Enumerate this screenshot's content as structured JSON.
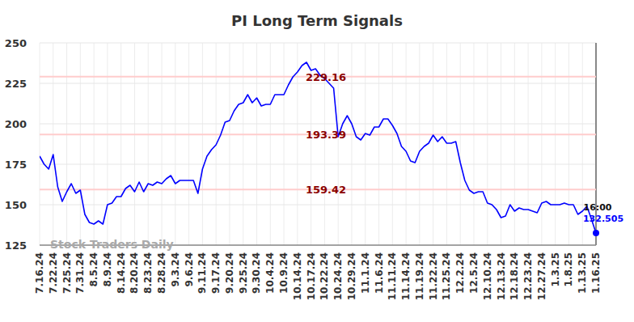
{
  "chart_data": {
    "type": "line",
    "title": "PI Long Term Signals",
    "categories": [
      "7.16.24",
      null,
      null,
      "7.22.24",
      null,
      null,
      "7.25.24",
      null,
      null,
      "7.31.24",
      null,
      null,
      "8.5.24",
      null,
      null,
      "8.9.24",
      null,
      null,
      "8.14.24",
      null,
      null,
      "8.20.24",
      null,
      null,
      "8.23.24",
      null,
      null,
      "8.28.24",
      null,
      null,
      "9.3.24",
      null,
      null,
      "9.6.24",
      null,
      null,
      "9.11.24",
      null,
      null,
      "9.17.24",
      null,
      null,
      "9.20.24",
      null,
      null,
      "9.25.24",
      null,
      null,
      "9.30.24",
      null,
      null,
      "10.4.24",
      null,
      null,
      "10.9.24",
      null,
      null,
      "10.14.24",
      null,
      null,
      "10.17.24",
      null,
      null,
      "10.22.24",
      null,
      null,
      "10.24.24",
      null,
      null,
      "10.29.24",
      null,
      null,
      "11.1.24",
      null,
      null,
      "11.6.24",
      null,
      null,
      "11.11.24",
      null,
      null,
      "11.14.24",
      null,
      null,
      "11.19.24",
      null,
      null,
      "11.22.24",
      null,
      null,
      "11.25.24",
      null,
      null,
      "12.2.24",
      null,
      null,
      "12.5.24",
      null,
      null,
      "12.10.24",
      null,
      null,
      "12.13.24",
      null,
      null,
      "12.18.24",
      null,
      null,
      "12.23.24",
      null,
      null,
      "12.27.24",
      null,
      null,
      "1.3.25",
      null,
      null,
      "1.8.25",
      null,
      null,
      "1.13.25",
      null,
      null,
      "1.16.25"
    ],
    "values": [
      180,
      175,
      172,
      181,
      161,
      152,
      158,
      163,
      157,
      159,
      144,
      139,
      138,
      140,
      138,
      150,
      151,
      155,
      155,
      160,
      162,
      158,
      164,
      158,
      163,
      162,
      164,
      163,
      166,
      168,
      163,
      165,
      165,
      165,
      165,
      157,
      172,
      180,
      184,
      187,
      193,
      201,
      202,
      208,
      212,
      213,
      218,
      213,
      216,
      211,
      212,
      212,
      218,
      218,
      218,
      224,
      229,
      232,
      236,
      238,
      233,
      234,
      230,
      228,
      225,
      222,
      192,
      200,
      205,
      200,
      192,
      190,
      194,
      193,
      198,
      198,
      203,
      203,
      199,
      194,
      186,
      183,
      177,
      176,
      183,
      186,
      188,
      193,
      189,
      192,
      188,
      188,
      189,
      176,
      165,
      159,
      157,
      158,
      158,
      151,
      150,
      147,
      142,
      143,
      150,
      146,
      148,
      147,
      147,
      146,
      145,
      151,
      152,
      150,
      150,
      150,
      151,
      150,
      150,
      144,
      146,
      149,
      141,
      132.505
    ],
    "color": "#0000ff",
    "ylim": [
      125,
      250
    ],
    "yticks": [
      125,
      150,
      175,
      200,
      225,
      250
    ],
    "grid": true,
    "signal_lines": [
      229.16,
      193.39,
      159.42
    ],
    "last_time": "16:00",
    "watermark": "Stock Traders Daily"
  }
}
